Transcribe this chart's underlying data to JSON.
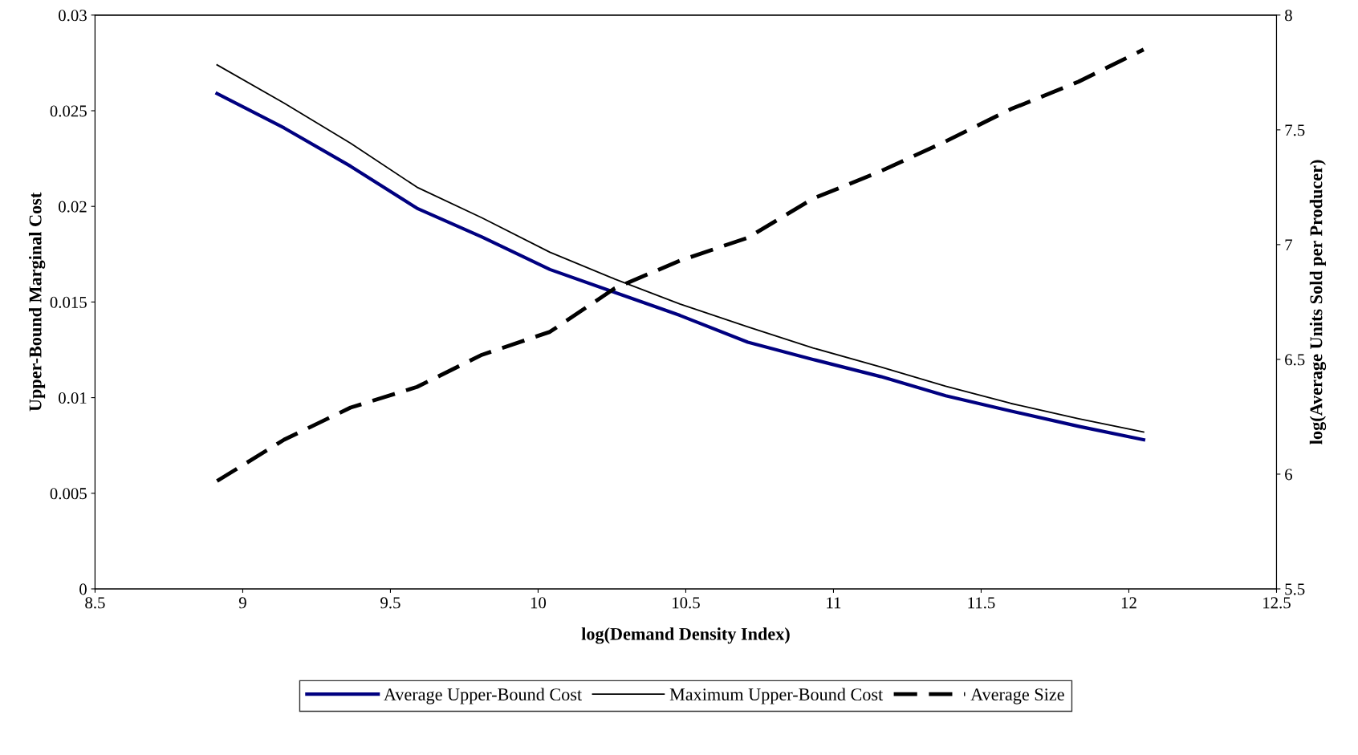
{
  "chart_data": {
    "type": "line",
    "xlabel": "log(Demand Density Index)",
    "ylabel": "Upper-Bound Marginal Cost",
    "y2label": "log(Average Units Sold per Producer)",
    "x": [
      8.913,
      9.14,
      9.365,
      9.59,
      9.81,
      10.04,
      10.26,
      10.48,
      10.71,
      10.93,
      11.16,
      11.38,
      11.6,
      11.83,
      12.05
    ],
    "series": [
      {
        "name": "Average Upper-Bound Cost",
        "color": "#000080",
        "line_style": "solid",
        "values": [
          0.0259,
          0.0241,
          0.0221,
          0.0199,
          0.0184,
          0.0167,
          0.0155,
          0.0143,
          0.0129,
          0.012,
          0.0111,
          0.0101,
          0.0093,
          0.0085,
          0.0078
        ]
      },
      {
        "name": "Maximum Upper-Bound Cost",
        "color": "#000000",
        "line_style": "solid",
        "values": [
          0.0274,
          0.0254,
          0.0233,
          0.021,
          0.0194,
          0.0176,
          0.0162,
          0.0149,
          0.0137,
          0.0126,
          0.0116,
          0.0106,
          0.0097,
          0.0089,
          0.0082
        ]
      },
      {
        "name": "Average Size",
        "color": "#000000",
        "line_style": "dashed",
        "axis": "y2",
        "values": [
          5.97,
          6.15,
          6.29,
          6.38,
          6.52,
          6.62,
          6.81,
          6.93,
          7.03,
          7.2,
          7.32,
          7.45,
          7.59,
          7.71,
          7.85
        ]
      }
    ],
    "xlim": [
      8.5,
      12.5
    ],
    "xticks": [
      8.5,
      9,
      9.5,
      10,
      10.5,
      11,
      11.5,
      12,
      12.5
    ],
    "ylim": [
      0,
      0.03
    ],
    "yticks": [
      0,
      0.005,
      0.01,
      0.015,
      0.02,
      0.025,
      0.03
    ],
    "y2lim": [
      5.5,
      8
    ],
    "y2ticks": [
      5.5,
      6,
      6.5,
      7,
      7.5,
      8
    ],
    "grid": false,
    "legend": "bottom",
    "marker": "none"
  }
}
